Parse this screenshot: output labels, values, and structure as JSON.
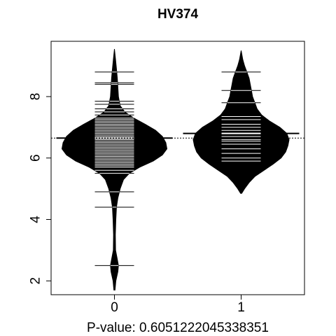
{
  "chart_data": {
    "type": "beanplot",
    "title": "HV374",
    "xlabel": "P-value: 0.6051222045338351",
    "ylabel": "",
    "categories": [
      "0",
      "1"
    ],
    "xlim": [
      -0.5,
      1.5
    ],
    "ylim": [
      1.55,
      9.8
    ],
    "yticks": [
      2,
      4,
      6,
      8
    ],
    "reference_line_y": 6.65,
    "grid": false,
    "legend": "none",
    "colors": {
      "bean_fill": "#000000",
      "bean_lines": "#ffffff",
      "axis": "#000000",
      "background": "#ffffff"
    },
    "series": [
      {
        "category": "0",
        "mean": 6.65,
        "density": [
          [
            1.7,
            0.005
          ],
          [
            2.0,
            0.012
          ],
          [
            2.3,
            0.03
          ],
          [
            2.5,
            0.035
          ],
          [
            2.7,
            0.025
          ],
          [
            3.0,
            0.01
          ],
          [
            3.5,
            0.008
          ],
          [
            4.0,
            0.012
          ],
          [
            4.4,
            0.018
          ],
          [
            4.7,
            0.03
          ],
          [
            5.0,
            0.05
          ],
          [
            5.3,
            0.08
          ],
          [
            5.5,
            0.13
          ],
          [
            5.7,
            0.22
          ],
          [
            5.9,
            0.34
          ],
          [
            6.1,
            0.42
          ],
          [
            6.3,
            0.46
          ],
          [
            6.5,
            0.45
          ],
          [
            6.7,
            0.42
          ],
          [
            6.9,
            0.36
          ],
          [
            7.1,
            0.27
          ],
          [
            7.3,
            0.17
          ],
          [
            7.5,
            0.09
          ],
          [
            7.7,
            0.05
          ],
          [
            8.0,
            0.035
          ],
          [
            8.3,
            0.03
          ],
          [
            8.6,
            0.025
          ],
          [
            8.9,
            0.018
          ],
          [
            9.2,
            0.01
          ],
          [
            9.55,
            0.0
          ]
        ],
        "observations": [
          2.5,
          4.4,
          4.9,
          5.5,
          5.6,
          5.7,
          5.75,
          5.8,
          5.85,
          5.9,
          5.95,
          6.0,
          6.05,
          6.1,
          6.15,
          6.2,
          6.25,
          6.3,
          6.35,
          6.4,
          6.45,
          6.5,
          6.55,
          6.6,
          6.65,
          6.7,
          6.75,
          6.8,
          6.85,
          6.9,
          6.95,
          7.0,
          7.05,
          7.1,
          7.15,
          7.2,
          7.25,
          7.3,
          7.4,
          7.5,
          7.6,
          7.75,
          7.85,
          8.4,
          8.45,
          8.8
        ]
      },
      {
        "category": "1",
        "mean": 6.8,
        "density": [
          [
            4.85,
            0.005
          ],
          [
            5.0,
            0.03
          ],
          [
            5.2,
            0.07
          ],
          [
            5.4,
            0.12
          ],
          [
            5.6,
            0.2
          ],
          [
            5.8,
            0.28
          ],
          [
            6.0,
            0.35
          ],
          [
            6.2,
            0.39
          ],
          [
            6.4,
            0.41
          ],
          [
            6.6,
            0.42
          ],
          [
            6.8,
            0.4
          ],
          [
            7.0,
            0.34
          ],
          [
            7.2,
            0.25
          ],
          [
            7.4,
            0.18
          ],
          [
            7.6,
            0.14
          ],
          [
            7.8,
            0.12
          ],
          [
            8.0,
            0.1
          ],
          [
            8.2,
            0.09
          ],
          [
            8.4,
            0.08
          ],
          [
            8.6,
            0.07
          ],
          [
            8.8,
            0.05
          ],
          [
            9.0,
            0.03
          ],
          [
            9.2,
            0.015
          ],
          [
            9.5,
            0.0
          ]
        ],
        "observations": [
          5.9,
          6.0,
          6.15,
          6.3,
          6.45,
          6.55,
          6.6,
          6.7,
          6.8,
          6.9,
          7.0,
          7.1,
          7.25,
          7.35,
          7.8,
          8.2,
          8.8
        ]
      }
    ]
  }
}
